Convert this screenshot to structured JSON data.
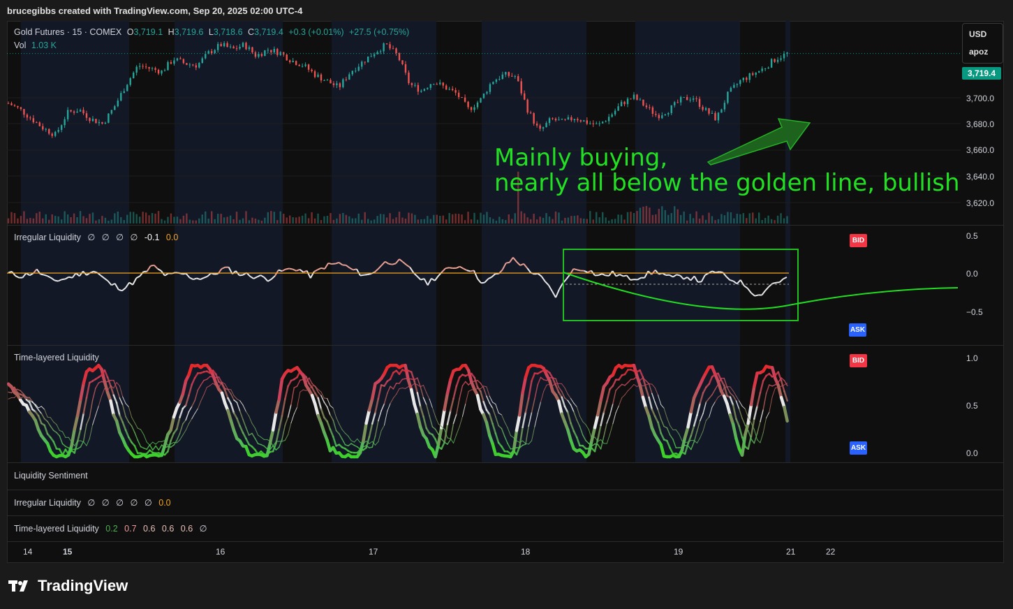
{
  "header": {
    "credit": "brucegibbs created with TradingView.com, Sep 20, 2025 02:00 UTC-4"
  },
  "legend": {
    "symbol": "Gold Futures · 15 · COMEX",
    "o_label": "O",
    "o_value": "3,719.1",
    "h_label": "H",
    "h_value": "3,719.6",
    "l_label": "L",
    "l_value": "3,718.6",
    "c_label": "C",
    "c_value": "3,719.4",
    "change": "+0.3 (+0.01%)",
    "change2": "+27.5 (+0.75%)",
    "vol_label": "Vol",
    "vol_value": "1.03 K"
  },
  "scale_box": {
    "currency": "USD",
    "account": "apoz"
  },
  "price_tag": "3,719.4",
  "annotation": {
    "line1": "Mainly buying,",
    "line2": "nearly all below the golden line, bullish"
  },
  "panes": {
    "irregular": {
      "title": "Irregular Liquidity",
      "values": [
        "∅",
        "∅",
        "∅",
        "∅",
        "-0.1"
      ],
      "last": "0.0"
    },
    "timelayered": {
      "title": "Time-layered Liquidity"
    },
    "sentiment": {
      "title": "Liquidity Sentiment"
    },
    "row_irregular": {
      "title": "Irregular Liquidity",
      "values": [
        "∅",
        "∅",
        "∅",
        "∅",
        "∅"
      ],
      "last": "0.0"
    },
    "row_timelayered": {
      "title": "Time-layered Liquidity",
      "v1": "0.2",
      "v2": "0.7",
      "v3": "0.6",
      "v4": "0.6",
      "v5": "0.6",
      "v6": "∅"
    }
  },
  "badges": {
    "bid": "BID",
    "ask": "ASK"
  },
  "price_axis": [
    "3,700.0",
    "3,680.0",
    "3,660.0",
    "3,640.0",
    "3,620.0"
  ],
  "irregular_axis": [
    "0.5",
    "0.0",
    "−0.5"
  ],
  "timelayered_axis": [
    "1.0",
    "0.5",
    "0.0"
  ],
  "x_axis": [
    "14",
    "15",
    "16",
    "17",
    "18",
    "19",
    "21",
    "22"
  ],
  "brand": "TradingView",
  "colors": {
    "up": "#26a69a",
    "down": "#ef5350",
    "annotation": "#22e022",
    "golden": "#f5a623",
    "bid": "#f23645",
    "ask": "#2962ff",
    "price_tag": "#089981"
  },
  "chart_data": [
    {
      "type": "line",
      "title": "Gold Futures · 15 · COMEX",
      "series": [
        {
          "name": "Gold Futures",
          "values": [
            3688,
            3684,
            3678,
            3672,
            3668,
            3682,
            3684,
            3678,
            3675,
            3686,
            3700,
            3712,
            3710,
            3708,
            3716,
            3713,
            3712,
            3720,
            3725,
            3722,
            3725,
            3718,
            3722,
            3720,
            3715,
            3712,
            3706,
            3702,
            3698,
            3708,
            3714,
            3720,
            3725,
            3718,
            3700,
            3696,
            3702,
            3698,
            3694,
            3684,
            3690,
            3702,
            3706,
            3705,
            3684,
            3670,
            3678,
            3676,
            3679,
            3676,
            3674,
            3680,
            3688,
            3692,
            3686,
            3680,
            3684,
            3690,
            3692,
            3684,
            3678,
            3694,
            3702,
            3706,
            3710,
            3716,
            3719.4
          ]
        }
      ],
      "ylim": [
        3612,
        3740
      ],
      "x_ticks": [
        "14",
        "15",
        "16",
        "17",
        "18",
        "19",
        "21",
        "22"
      ]
    },
    {
      "type": "line",
      "title": "Irregular Liquidity",
      "series": [
        {
          "name": "Irregular Liquidity",
          "values": [
            0.0,
            -0.05,
            0.05,
            -0.15,
            -0.1,
            0.0,
            0.05,
            -0.2,
            -0.3,
            -0.1,
            0.15,
            -0.05,
            0.0,
            -0.1,
            -0.05,
            0.1,
            0.0,
            -0.05,
            -0.1,
            0.05,
            0.1,
            -0.05,
            0.15,
            0.2,
            0.05,
            -0.05,
            0.2,
            0.25,
            0.05,
            -0.2,
            0.0,
            0.15,
            0.1,
            -0.2,
            0.0,
            0.3,
            0.1,
            -0.1,
            -0.45,
            0.05,
            0.1,
            -0.05,
            0.0,
            -0.1,
            -0.05,
            0.05,
            -0.1,
            -0.05,
            -0.15,
            0.05,
            -0.1,
            -0.2,
            -0.45,
            -0.2,
            -0.1
          ]
        }
      ],
      "ylim": [
        -0.75,
        0.75
      ]
    },
    {
      "type": "line",
      "title": "Time-layered Liquidity",
      "series": [
        {
          "name": "Time-layered Liquidity",
          "values": [
            0.8,
            0.6,
            0.3,
            0.0,
            0.0,
            0.9,
            1.0,
            0.4,
            0.0,
            0.0,
            0.0,
            0.5,
            1.0,
            1.0,
            0.7,
            0.2,
            0.0,
            0.0,
            0.9,
            1.0,
            0.6,
            0.1,
            0.0,
            0.0,
            0.8,
            1.0,
            1.0,
            0.3,
            0.0,
            0.9,
            1.0,
            0.5,
            0.0,
            0.0,
            1.0,
            1.0,
            0.6,
            0.1,
            0.0,
            0.8,
            1.0,
            1.0,
            0.4,
            0.0,
            0.0,
            0.7,
            1.0,
            0.6,
            0.0,
            0.9,
            1.0,
            0.4
          ]
        }
      ],
      "ylim": [
        0,
        1.1
      ]
    }
  ]
}
